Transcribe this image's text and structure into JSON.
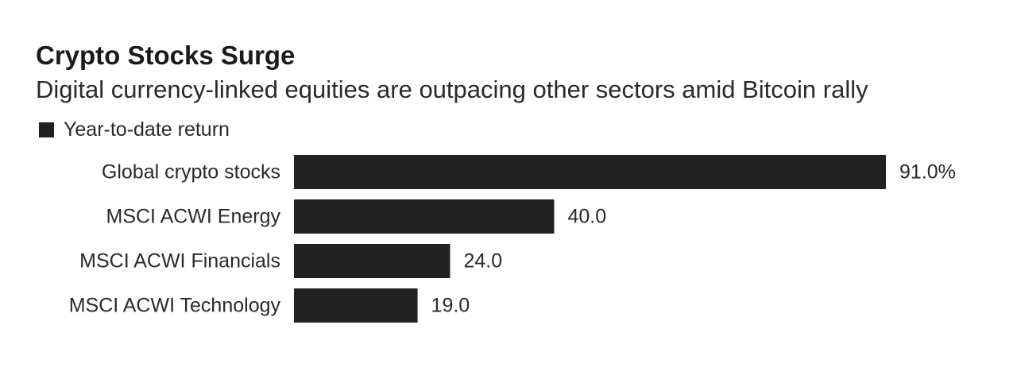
{
  "chart_data": {
    "type": "bar",
    "orientation": "horizontal",
    "title": "Crypto Stocks Surge",
    "subtitle": "Digital currency-linked equities are outpacing other sectors amid Bitcoin rally",
    "categories": [
      "Global crypto stocks",
      "MSCI ACWI Energy",
      "MSCI ACWI Financials",
      "MSCI ACWI Technology"
    ],
    "series": [
      {
        "name": "Year-to-date return",
        "values": [
          91.0,
          40.0,
          24.0,
          19.0
        ],
        "color": "#222222"
      }
    ],
    "value_labels": [
      "91.0%",
      "40.0",
      "24.0",
      "19.0"
    ],
    "xlim": [
      0,
      91.0
    ],
    "grid": false,
    "legend_position": "top-left"
  }
}
